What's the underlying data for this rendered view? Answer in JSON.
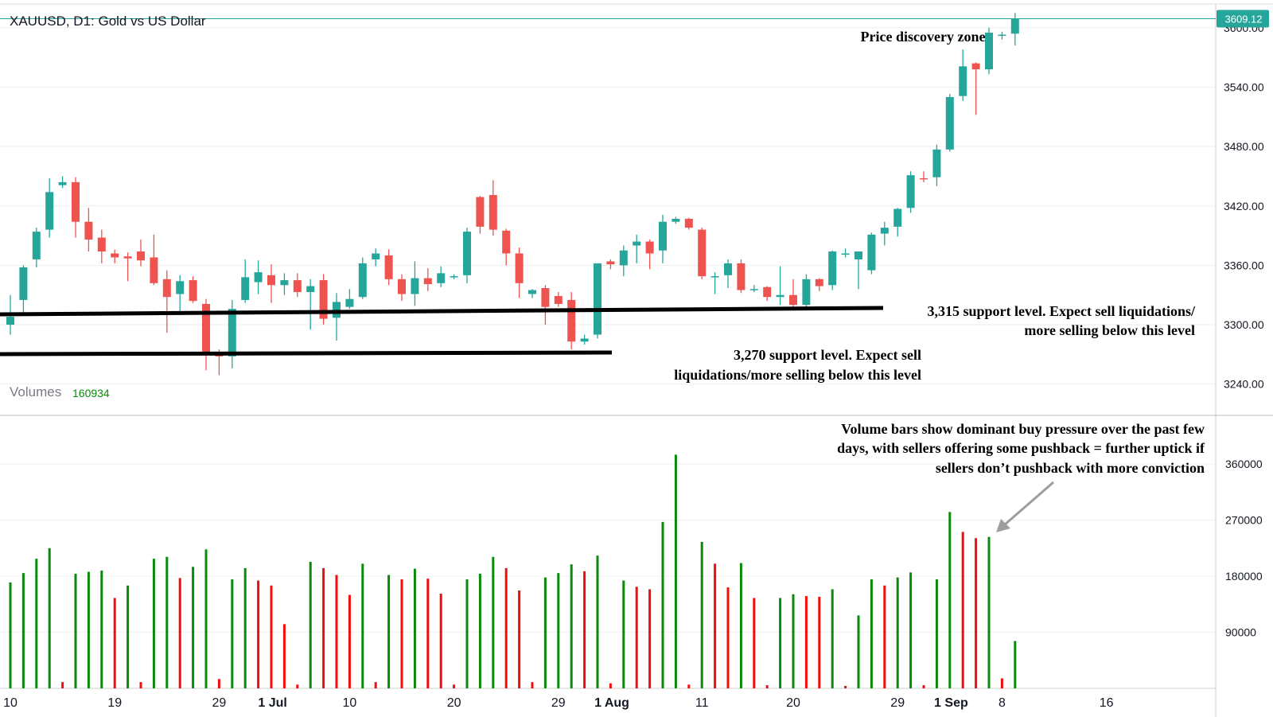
{
  "chart_data": [
    {
      "type": "candlestick",
      "title": "XAUUSD, D1: Gold vs US Dollar",
      "ylim": [
        3210,
        3624
      ],
      "yticks": [
        "3600.00",
        "3540.00",
        "3480.00",
        "3420.00",
        "3360.00",
        "3300.00",
        "3240.00"
      ],
      "xticks": [
        "10",
        "19",
        "29",
        "1 Jul",
        "10",
        "20",
        "29",
        "1 Aug",
        "11",
        "20",
        "29",
        "1 Sep",
        "8",
        "16"
      ],
      "last_price": "3609.12",
      "colors": {
        "up": "#26a69a",
        "down": "#ef5350",
        "grid": "#d6d6d6",
        "last_line": "#26a69a"
      },
      "candles": [
        {
          "o": 3300,
          "h": 3330,
          "l": 3290,
          "c": 3308
        },
        {
          "o": 3325,
          "h": 3360,
          "l": 3312,
          "c": 3358
        },
        {
          "o": 3366,
          "h": 3398,
          "l": 3358,
          "c": 3394
        },
        {
          "o": 3396,
          "h": 3448,
          "l": 3388,
          "c": 3434
        },
        {
          "o": 3441,
          "h": 3450,
          "l": 3438,
          "c": 3444
        },
        {
          "o": 3444,
          "h": 3449,
          "l": 3388,
          "c": 3404
        },
        {
          "o": 3404,
          "h": 3418,
          "l": 3374,
          "c": 3386
        },
        {
          "o": 3388,
          "h": 3396,
          "l": 3362,
          "c": 3374
        },
        {
          "o": 3372,
          "h": 3376,
          "l": 3362,
          "c": 3368
        },
        {
          "o": 3369,
          "h": 3373,
          "l": 3344,
          "c": 3367
        },
        {
          "o": 3374,
          "h": 3386,
          "l": 3359,
          "c": 3365
        },
        {
          "o": 3368,
          "h": 3391,
          "l": 3340,
          "c": 3342
        },
        {
          "o": 3346,
          "h": 3355,
          "l": 3292,
          "c": 3328
        },
        {
          "o": 3331,
          "h": 3350,
          "l": 3310,
          "c": 3344
        },
        {
          "o": 3345,
          "h": 3349,
          "l": 3322,
          "c": 3324
        },
        {
          "o": 3321,
          "h": 3326,
          "l": 3254,
          "c": 3272
        },
        {
          "o": 3271,
          "h": 3275,
          "l": 3249,
          "c": 3268
        },
        {
          "o": 3268,
          "h": 3325,
          "l": 3256,
          "c": 3316
        },
        {
          "o": 3325,
          "h": 3366,
          "l": 3322,
          "c": 3348
        },
        {
          "o": 3343,
          "h": 3365,
          "l": 3331,
          "c": 3353
        },
        {
          "o": 3350,
          "h": 3361,
          "l": 3322,
          "c": 3340
        },
        {
          "o": 3340,
          "h": 3352,
          "l": 3330,
          "c": 3345
        },
        {
          "o": 3345,
          "h": 3352,
          "l": 3328,
          "c": 3333
        },
        {
          "o": 3333,
          "h": 3346,
          "l": 3295,
          "c": 3339
        },
        {
          "o": 3345,
          "h": 3351,
          "l": 3300,
          "c": 3306
        },
        {
          "o": 3307,
          "h": 3332,
          "l": 3284,
          "c": 3323
        },
        {
          "o": 3318,
          "h": 3336,
          "l": 3316,
          "c": 3326
        },
        {
          "o": 3328,
          "h": 3368,
          "l": 3326,
          "c": 3362
        },
        {
          "o": 3366,
          "h": 3377,
          "l": 3359,
          "c": 3372
        },
        {
          "o": 3370,
          "h": 3376,
          "l": 3340,
          "c": 3346
        },
        {
          "o": 3346,
          "h": 3351,
          "l": 3324,
          "c": 3331
        },
        {
          "o": 3331,
          "h": 3364,
          "l": 3319,
          "c": 3347
        },
        {
          "o": 3347,
          "h": 3357,
          "l": 3334,
          "c": 3341
        },
        {
          "o": 3342,
          "h": 3359,
          "l": 3338,
          "c": 3352
        },
        {
          "o": 3349,
          "h": 3351,
          "l": 3346,
          "c": 3349
        },
        {
          "o": 3350,
          "h": 3398,
          "l": 3342,
          "c": 3394
        },
        {
          "o": 3429,
          "h": 3430,
          "l": 3392,
          "c": 3399
        },
        {
          "o": 3431,
          "h": 3446,
          "l": 3390,
          "c": 3396
        },
        {
          "o": 3395,
          "h": 3397,
          "l": 3360,
          "c": 3372
        },
        {
          "o": 3372,
          "h": 3378,
          "l": 3327,
          "c": 3342
        },
        {
          "o": 3331,
          "h": 3336,
          "l": 3327,
          "c": 3335
        },
        {
          "o": 3337,
          "h": 3340,
          "l": 3300,
          "c": 3318
        },
        {
          "o": 3329,
          "h": 3333,
          "l": 3318,
          "c": 3321
        },
        {
          "o": 3325,
          "h": 3333,
          "l": 3275,
          "c": 3283
        },
        {
          "o": 3283,
          "h": 3290,
          "l": 3280,
          "c": 3286
        },
        {
          "o": 3290,
          "h": 3362,
          "l": 3286,
          "c": 3362
        },
        {
          "o": 3364,
          "h": 3366,
          "l": 3356,
          "c": 3361
        },
        {
          "o": 3360,
          "h": 3380,
          "l": 3349,
          "c": 3375
        },
        {
          "o": 3380,
          "h": 3391,
          "l": 3362,
          "c": 3384
        },
        {
          "o": 3384,
          "h": 3386,
          "l": 3356,
          "c": 3372
        },
        {
          "o": 3375,
          "h": 3411,
          "l": 3362,
          "c": 3404
        },
        {
          "o": 3404,
          "h": 3409,
          "l": 3402,
          "c": 3407
        },
        {
          "o": 3407,
          "h": 3408,
          "l": 3396,
          "c": 3398
        },
        {
          "o": 3396,
          "h": 3398,
          "l": 3346,
          "c": 3349
        },
        {
          "o": 3349,
          "h": 3353,
          "l": 3331,
          "c": 3349
        },
        {
          "o": 3350,
          "h": 3366,
          "l": 3337,
          "c": 3362
        },
        {
          "o": 3362,
          "h": 3366,
          "l": 3332,
          "c": 3335
        },
        {
          "o": 3335,
          "h": 3340,
          "l": 3333,
          "c": 3336
        },
        {
          "o": 3338,
          "h": 3339,
          "l": 3324,
          "c": 3328
        },
        {
          "o": 3328,
          "h": 3359,
          "l": 3320,
          "c": 3330
        },
        {
          "o": 3330,
          "h": 3346,
          "l": 3315,
          "c": 3320
        },
        {
          "o": 3320,
          "h": 3351,
          "l": 3317,
          "c": 3346
        },
        {
          "o": 3346,
          "h": 3347,
          "l": 3334,
          "c": 3339
        },
        {
          "o": 3340,
          "h": 3375,
          "l": 3335,
          "c": 3374
        },
        {
          "o": 3372,
          "h": 3377,
          "l": 3368,
          "c": 3372
        },
        {
          "o": 3366,
          "h": 3374,
          "l": 3336,
          "c": 3374
        },
        {
          "o": 3355,
          "h": 3393,
          "l": 3351,
          "c": 3391
        },
        {
          "o": 3392,
          "h": 3404,
          "l": 3380,
          "c": 3398
        },
        {
          "o": 3399,
          "h": 3418,
          "l": 3389,
          "c": 3417
        },
        {
          "o": 3418,
          "h": 3455,
          "l": 3413,
          "c": 3451
        },
        {
          "o": 3448,
          "h": 3455,
          "l": 3444,
          "c": 3447
        },
        {
          "o": 3449,
          "h": 3482,
          "l": 3440,
          "c": 3477
        },
        {
          "o": 3477,
          "h": 3533,
          "l": 3475,
          "c": 3530
        },
        {
          "o": 3531,
          "h": 3578,
          "l": 3526,
          "c": 3561
        },
        {
          "o": 3564,
          "h": 3565,
          "l": 3512,
          "c": 3558
        },
        {
          "o": 3558,
          "h": 3600,
          "l": 3553,
          "c": 3595
        },
        {
          "o": 3592,
          "h": 3596,
          "l": 3588,
          "c": 3593
        },
        {
          "o": 3594,
          "h": 3615,
          "l": 3582,
          "c": 3609
        }
      ]
    },
    {
      "type": "bar",
      "title": "Volumes",
      "value_label": "160934",
      "ylim": [
        0,
        415000
      ],
      "yticks": [
        "360000",
        "270000",
        "180000",
        "90000"
      ],
      "colors": {
        "up": "#0a8a0a",
        "down": "#f20d0d"
      },
      "bars": [
        {
          "v": 170000,
          "d": "up"
        },
        {
          "v": 185000,
          "d": "up"
        },
        {
          "v": 208000,
          "d": "up"
        },
        {
          "v": 225000,
          "d": "up"
        },
        {
          "v": 10000,
          "d": "down"
        },
        {
          "v": 184000,
          "d": "up"
        },
        {
          "v": 187000,
          "d": "up"
        },
        {
          "v": 189000,
          "d": "up"
        },
        {
          "v": 145000,
          "d": "down"
        },
        {
          "v": 165000,
          "d": "up"
        },
        {
          "v": 10000,
          "d": "down"
        },
        {
          "v": 208000,
          "d": "up"
        },
        {
          "v": 211000,
          "d": "up"
        },
        {
          "v": 177000,
          "d": "down"
        },
        {
          "v": 195000,
          "d": "up"
        },
        {
          "v": 223000,
          "d": "up"
        },
        {
          "v": 15000,
          "d": "down"
        },
        {
          "v": 175000,
          "d": "up"
        },
        {
          "v": 193000,
          "d": "up"
        },
        {
          "v": 173000,
          "d": "down"
        },
        {
          "v": 165000,
          "d": "down"
        },
        {
          "v": 103000,
          "d": "down"
        },
        {
          "v": 6000,
          "d": "down"
        },
        {
          "v": 203000,
          "d": "up"
        },
        {
          "v": 193000,
          "d": "down"
        },
        {
          "v": 182000,
          "d": "down"
        },
        {
          "v": 150000,
          "d": "down"
        },
        {
          "v": 200000,
          "d": "up"
        },
        {
          "v": 10000,
          "d": "down"
        },
        {
          "v": 182000,
          "d": "up"
        },
        {
          "v": 175000,
          "d": "down"
        },
        {
          "v": 192000,
          "d": "up"
        },
        {
          "v": 176000,
          "d": "down"
        },
        {
          "v": 152000,
          "d": "down"
        },
        {
          "v": 6000,
          "d": "down"
        },
        {
          "v": 175000,
          "d": "up"
        },
        {
          "v": 184000,
          "d": "up"
        },
        {
          "v": 211000,
          "d": "up"
        },
        {
          "v": 193000,
          "d": "down"
        },
        {
          "v": 157000,
          "d": "down"
        },
        {
          "v": 10000,
          "d": "down"
        },
        {
          "v": 178000,
          "d": "up"
        },
        {
          "v": 185000,
          "d": "up"
        },
        {
          "v": 199000,
          "d": "up"
        },
        {
          "v": 188000,
          "d": "down"
        },
        {
          "v": 213000,
          "d": "up"
        },
        {
          "v": 8000,
          "d": "down"
        },
        {
          "v": 173000,
          "d": "up"
        },
        {
          "v": 163000,
          "d": "down"
        },
        {
          "v": 159000,
          "d": "down"
        },
        {
          "v": 267000,
          "d": "up"
        },
        {
          "v": 375000,
          "d": "up"
        },
        {
          "v": 6000,
          "d": "down"
        },
        {
          "v": 235000,
          "d": "up"
        },
        {
          "v": 200000,
          "d": "down"
        },
        {
          "v": 162000,
          "d": "down"
        },
        {
          "v": 201000,
          "d": "up"
        },
        {
          "v": 145000,
          "d": "down"
        },
        {
          "v": 5000,
          "d": "down"
        },
        {
          "v": 145000,
          "d": "up"
        },
        {
          "v": 151000,
          "d": "up"
        },
        {
          "v": 148000,
          "d": "down"
        },
        {
          "v": 147000,
          "d": "down"
        },
        {
          "v": 159000,
          "d": "up"
        },
        {
          "v": 4000,
          "d": "down"
        },
        {
          "v": 117000,
          "d": "up"
        },
        {
          "v": 175000,
          "d": "up"
        },
        {
          "v": 165000,
          "d": "down"
        },
        {
          "v": 178000,
          "d": "up"
        },
        {
          "v": 186000,
          "d": "up"
        },
        {
          "v": 5000,
          "d": "down"
        },
        {
          "v": 175000,
          "d": "up"
        },
        {
          "v": 283000,
          "d": "up"
        },
        {
          "v": 251000,
          "d": "down"
        },
        {
          "v": 241000,
          "d": "down"
        },
        {
          "v": 243000,
          "d": "up"
        },
        {
          "v": 16000,
          "d": "down"
        },
        {
          "v": 76000,
          "d": "up"
        }
      ]
    }
  ],
  "annotations": {
    "price_discovery": "Price discovery zone",
    "support_3315_line1": "3,315 support level. Expect sell liquidations/",
    "support_3315_line2": "more selling below this level",
    "support_3270_line1": "3,270 support level. Expect sell",
    "support_3270_line2": "liquidations/more selling below this level",
    "volume_note_line1": "Volume bars show dominant buy pressure over the past few",
    "volume_note_line2": "days, with sellers offering some pushback = further uptick if",
    "volume_note_line3": "sellers don’t pushback with more conviction"
  }
}
